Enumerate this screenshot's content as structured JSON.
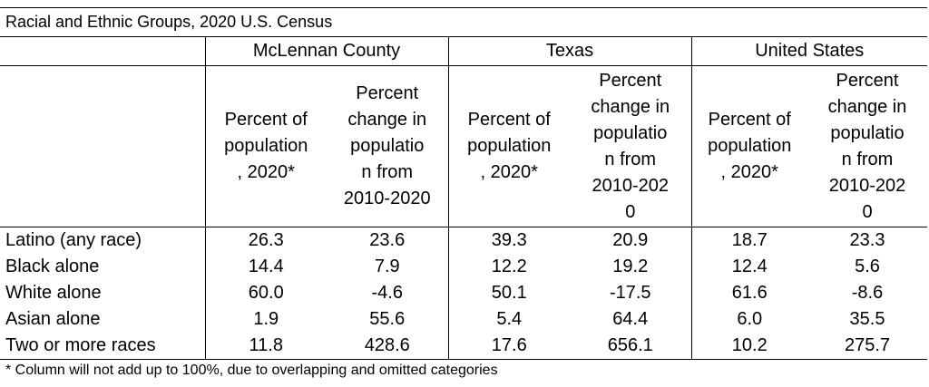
{
  "table": {
    "title": "Racial and Ethnic Groups, 2020 U.S. Census",
    "groups": [
      "McLennan County",
      "Texas",
      "United States"
    ],
    "subheaders": [
      "Percent of\npopulation\n, 2020*",
      "Percent\nchange in\npopulatio\nn from\n2010-2020",
      "Percent of\npopulation\n, 2020*",
      "Percent\nchange in\npopulatio\nn from\n2010-202\n0",
      "Percent of\npopulation\n, 2020*",
      "Percent\nchange in\npopulatio\nn from\n2010-202\n0"
    ],
    "rows": [
      {
        "label": "Latino (any race)",
        "values": [
          "26.3",
          "23.6",
          "39.3",
          "20.9",
          "18.7",
          "23.3"
        ]
      },
      {
        "label": "Black alone",
        "values": [
          "14.4",
          "7.9",
          "12.2",
          "19.2",
          "12.4",
          "5.6"
        ]
      },
      {
        "label": "White alone",
        "values": [
          "60.0",
          "-4.6",
          "50.1",
          "-17.5",
          "61.6",
          "-8.6"
        ]
      },
      {
        "label": "Asian alone",
        "values": [
          "1.9",
          "55.6",
          "5.4",
          "64.4",
          "6.0",
          "35.5"
        ]
      },
      {
        "label": "Two or more races",
        "values": [
          "11.8",
          "428.6",
          "17.6",
          "656.1",
          "10.2",
          "275.7"
        ]
      }
    ],
    "footnote": "* Column will not add up to 100%, due to overlapping and omitted categories"
  }
}
